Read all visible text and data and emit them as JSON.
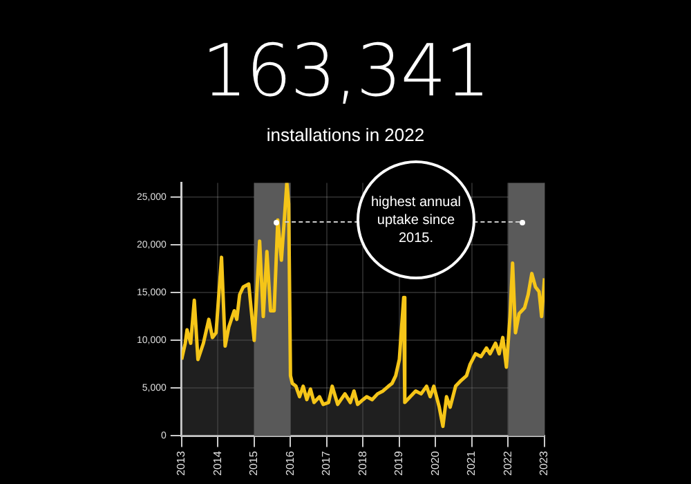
{
  "chart_data": {
    "type": "area",
    "title": "163,341",
    "subtitle": "installations in 2022",
    "x": [
      2013.0,
      2013.1,
      2013.15,
      2013.25,
      2013.35,
      2013.45,
      2013.6,
      2013.75,
      2013.85,
      2013.95,
      2014.1,
      2014.2,
      2014.3,
      2014.45,
      2014.52,
      2014.6,
      2014.7,
      2014.85,
      2015.0,
      2015.15,
      2015.25,
      2015.35,
      2015.45,
      2015.55,
      2015.65,
      2015.75,
      2015.82,
      2015.9,
      2015.95,
      2016.0,
      2016.05,
      2016.15,
      2016.25,
      2016.35,
      2016.45,
      2016.55,
      2016.65,
      2016.8,
      2016.9,
      2017.05,
      2017.15,
      2017.3,
      2017.5,
      2017.65,
      2017.75,
      2017.85,
      2018.0,
      2018.1,
      2018.25,
      2018.4,
      2018.55,
      2018.7,
      2018.8,
      2018.9,
      2019.0,
      2019.12,
      2019.15,
      2019.3,
      2019.45,
      2019.6,
      2019.75,
      2019.85,
      2019.95,
      2020.1,
      2020.2,
      2020.3,
      2020.4,
      2020.55,
      2020.7,
      2020.85,
      2020.95,
      2021.1,
      2021.25,
      2021.4,
      2021.5,
      2021.65,
      2021.75,
      2021.85,
      2021.95,
      2022.05,
      2022.12,
      2022.2,
      2022.3,
      2022.45,
      2022.55,
      2022.65,
      2022.75,
      2022.85,
      2022.92,
      2023.0
    ],
    "series": [
      {
        "color": "#f5c518",
        "values": [
          8000,
          9700,
          11100,
          9700,
          14200,
          8000,
          9700,
          12200,
          10300,
          10800,
          18700,
          9400,
          11400,
          13100,
          12200,
          14800,
          15600,
          15900,
          10000,
          20400,
          12500,
          19300,
          13100,
          13100,
          22600,
          18400,
          22100,
          26500,
          24300,
          6300,
          5500,
          5200,
          4100,
          5200,
          3800,
          4900,
          3500,
          4100,
          3300,
          3500,
          5200,
          3300,
          4400,
          3500,
          4700,
          3300,
          3800,
          4100,
          3800,
          4400,
          4700,
          5200,
          5500,
          6300,
          8000,
          14500,
          3500,
          4100,
          4700,
          4400,
          5200,
          4100,
          5200,
          3000,
          1000,
          4100,
          3000,
          5200,
          5800,
          6300,
          7500,
          8600,
          8300,
          9200,
          8600,
          9700,
          8600,
          10300,
          7200,
          12500,
          18100,
          10800,
          12800,
          13400,
          14800,
          17000,
          15600,
          15100,
          12500,
          16500
        ]
      }
    ],
    "xlim": [
      2013,
      2023
    ],
    "xticks": [
      2013,
      2014,
      2015,
      2016,
      2017,
      2018,
      2019,
      2020,
      2021,
      2022,
      2023
    ],
    "ylim": [
      0,
      26500
    ],
    "yticks": [
      0,
      {
        "value": 5000,
        "label": "5,000"
      },
      {
        "value": 10000,
        "label": "10,000"
      },
      {
        "value": 15000,
        "label": "15,000"
      },
      {
        "value": 20000,
        "label": "20,000"
      },
      {
        "value": 25000,
        "label": "25,000"
      }
    ],
    "grid": true,
    "marker": "none",
    "line_style": "solid",
    "bands": [
      {
        "axis": "x",
        "from": 2015,
        "to": 2016,
        "color": "#5a5a5a"
      },
      {
        "axis": "x",
        "from": 2022,
        "to": 2023,
        "color": "#5a5a5a"
      }
    ],
    "annotations": [
      "highest annual uptake since 2015."
    ]
  }
}
